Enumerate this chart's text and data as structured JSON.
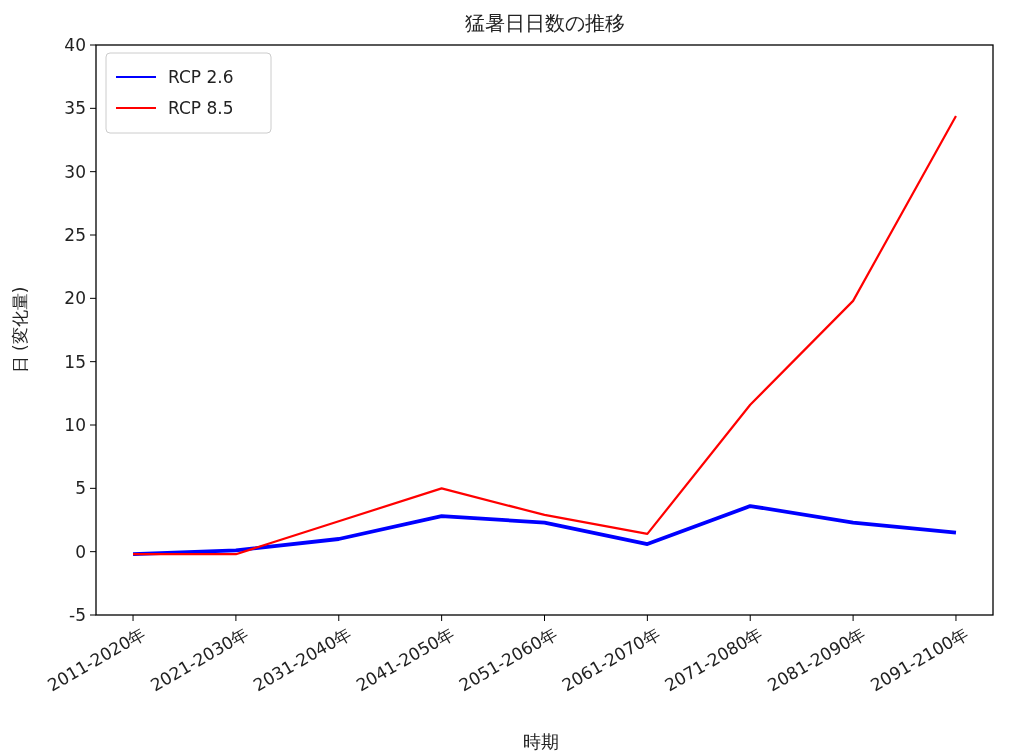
{
  "chart_data": {
    "type": "line",
    "title": "猛暑日日数の推移",
    "xlabel": "時期",
    "ylabel": "日 (変化量)",
    "categories": [
      "2011-2020年",
      "2021-2030年",
      "2031-2040年",
      "2041-2050年",
      "2051-2060年",
      "2061-2070年",
      "2071-2080年",
      "2081-2090年",
      "2091-2100年"
    ],
    "series": [
      {
        "name": "RCP 2.6",
        "color": "#0000ff",
        "values": [
          -0.2,
          0.1,
          1.0,
          2.8,
          2.3,
          0.6,
          3.6,
          2.3,
          1.5
        ]
      },
      {
        "name": "RCP 8.5",
        "color": "#ff0000",
        "values": [
          -0.2,
          -0.2,
          2.4,
          5.0,
          2.9,
          1.4,
          11.6,
          19.8,
          34.4
        ]
      }
    ],
    "ylim": [
      -5,
      40
    ],
    "yticks": [
      -5,
      0,
      5,
      10,
      15,
      20,
      25,
      30,
      35,
      40
    ],
    "legend": "top left",
    "grid": false,
    "marker": "none",
    "line_style": "solid"
  }
}
